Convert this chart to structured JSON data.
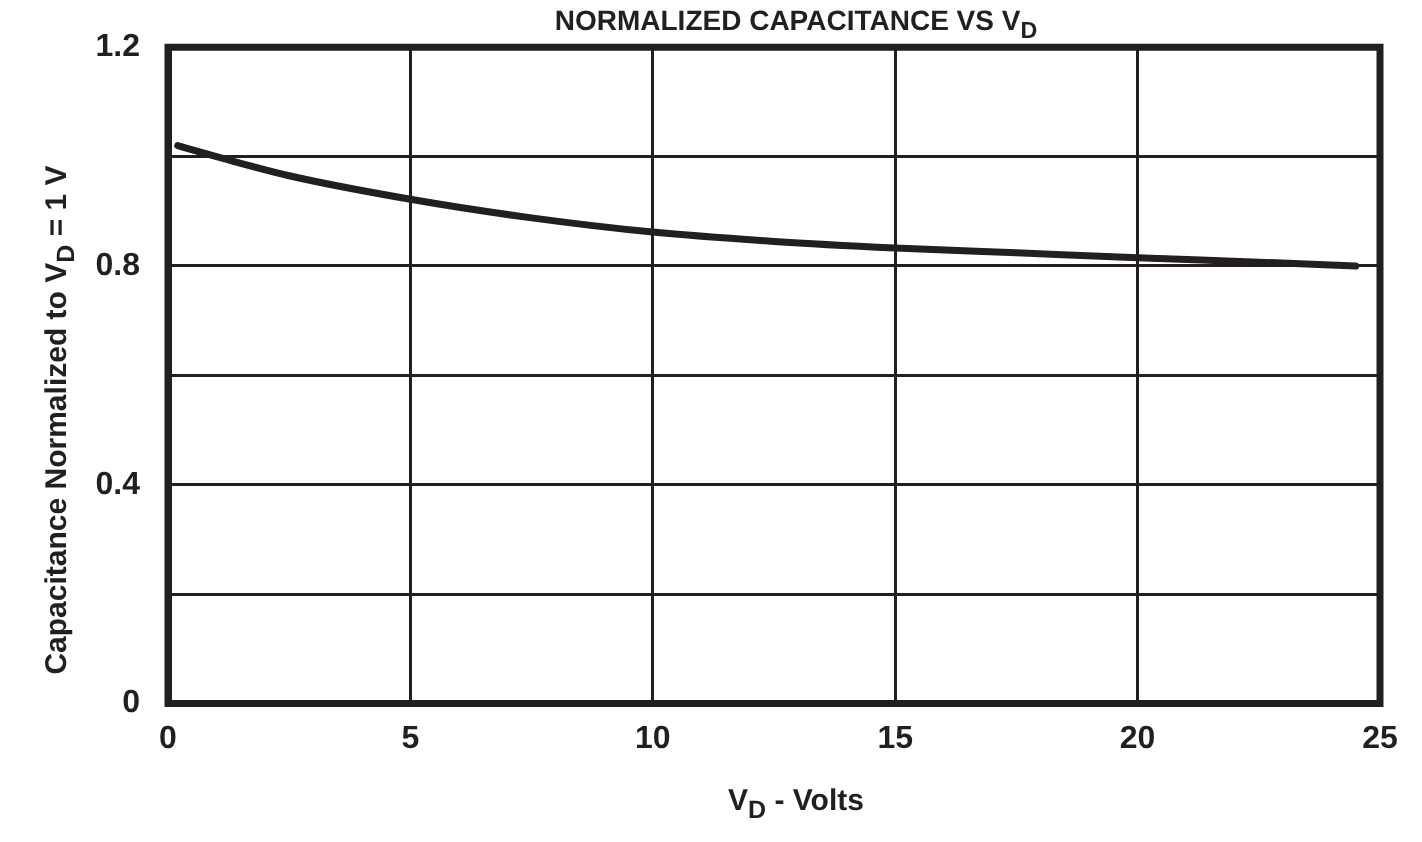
{
  "chart_data": {
    "type": "line",
    "title": "NORMALIZED CAPACITANCE VS V$_{D}$",
    "xlabel": "V$_{D}$ - Volts",
    "ylabel": "Capacitance Normalized to V$_{D}$ = 1 V",
    "x": [
      0.2,
      1,
      2.5,
      5,
      7.5,
      10,
      12.5,
      15,
      17.5,
      20,
      22.5,
      24.5
    ],
    "series": [
      {
        "color": "#231f20",
        "values": [
          1.02,
          1.0,
          0.965,
          0.922,
          0.888,
          0.862,
          0.845,
          0.833,
          0.824,
          0.815,
          0.807,
          0.8
        ]
      }
    ],
    "xlim": [
      0,
      25
    ],
    "xticks": [
      0,
      5,
      10,
      15,
      20,
      25
    ],
    "ylim": [
      0,
      1.2
    ],
    "yticks": [
      0,
      {
        "value": 0.2,
        "label": null
      },
      0.4,
      {
        "value": 0.6,
        "label": null
      },
      0.8,
      {
        "value": 1.0,
        "label": null
      },
      1.2
    ],
    "grid": true,
    "legend": false,
    "marker": "none",
    "line_style": "solid"
  }
}
